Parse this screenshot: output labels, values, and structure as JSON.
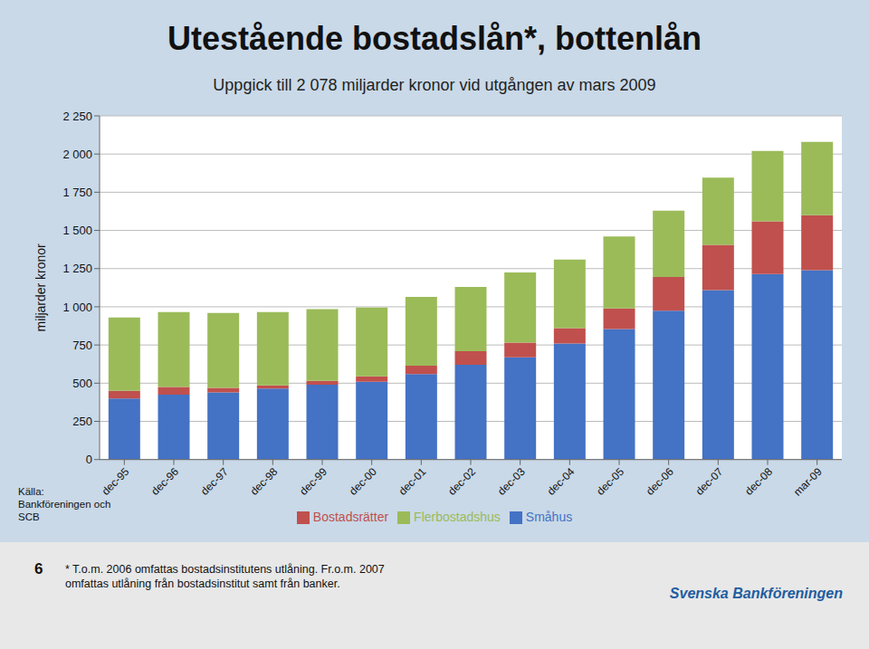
{
  "chart_data": {
    "type": "bar",
    "stacked": true,
    "title": "Utestående bostadslån*, bottenlån",
    "subtitle": "Uppgick till 2 078 miljarder kronor vid utgången av mars 2009",
    "ylabel": "miljarder kronor",
    "categories": [
      "dec-95",
      "dec-96",
      "dec-97",
      "dec-98",
      "dec-99",
      "dec-00",
      "dec-01",
      "dec-02",
      "dec-03",
      "dec-04",
      "dec-05",
      "dec-06",
      "dec-07",
      "dec-08",
      "mar-09"
    ],
    "series": [
      {
        "name": "Småhus",
        "color": "#4472C4",
        "values": [
          400,
          425,
          440,
          465,
          490,
          510,
          560,
          620,
          670,
          760,
          855,
          975,
          1110,
          1215,
          1240
        ]
      },
      {
        "name": "Bostadsrätter",
        "color": "#C0504D",
        "values": [
          50,
          50,
          30,
          20,
          25,
          35,
          55,
          90,
          95,
          100,
          135,
          220,
          295,
          345,
          360
        ]
      },
      {
        "name": "Flerbostadshus",
        "color": "#9BBB59",
        "values": [
          480,
          490,
          490,
          480,
          470,
          450,
          450,
          420,
          460,
          450,
          470,
          435,
          440,
          460,
          480
        ]
      }
    ],
    "ylim": [
      0,
      2250
    ],
    "yticks": [
      0,
      250,
      500,
      750,
      {
        "value": 1000,
        "label": "1 000"
      },
      {
        "value": 1250,
        "label": "1 250"
      },
      {
        "value": 1500,
        "label": "1 500"
      },
      {
        "value": 1750,
        "label": "1 750"
      },
      {
        "value": 2000,
        "label": "2 000"
      },
      {
        "value": 2250,
        "label": "2 250"
      }
    ],
    "grid": true,
    "legend": "bottom",
    "annotations": [
      {
        "text": "Källa:\nBankföreningen och\nSCB"
      },
      {
        "text": "6"
      },
      {
        "text": "* T.o.m. 2006 omfattas bostadsinstitutens utlåning. Fr.o.m. 2007\nomfattas utlåning från bostadsinstitut samt från banker."
      },
      {
        "text": "Svenska Bankföreningen",
        "color": "#1F5DA0"
      }
    ]
  }
}
